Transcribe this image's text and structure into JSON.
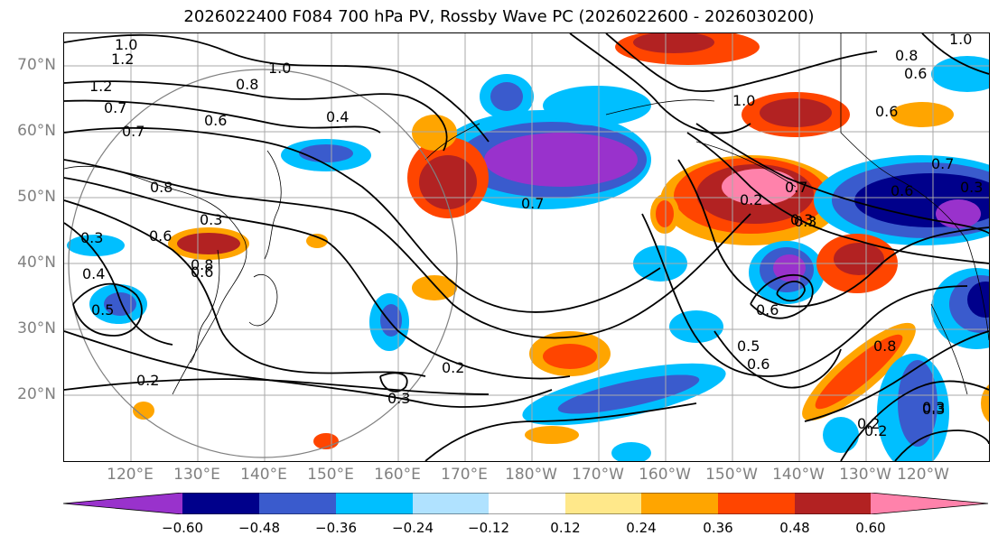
{
  "title": "2026022400 F084 700 hPa PV, Rossby Wave PC (2026022600 - 2026030200)",
  "latitude_labels": [
    "70°N",
    "60°N",
    "50°N",
    "40°N",
    "30°N",
    "20°N"
  ],
  "longitude_labels": [
    "120°E",
    "130°E",
    "140°E",
    "150°E",
    "160°E",
    "170°E",
    "180°W",
    "170°W",
    "160°W",
    "150°W",
    "140°W",
    "130°W",
    "120°W"
  ],
  "colorbar": {
    "tick_labels": [
      "−0.60",
      "−0.48",
      "−0.36",
      "−0.24",
      "−0.12",
      "0.12",
      "0.24",
      "0.36",
      "0.48",
      "0.60"
    ],
    "colors": [
      "#9932cc",
      "#00008b",
      "#3a5bcd",
      "#00bfff",
      "#b0e2ff",
      "#ffffff",
      "#ffe88a",
      "#ffa500",
      "#ff4500",
      "#b22222",
      "#ff82ab"
    ]
  },
  "contour_labels": [
    "1.0",
    "1.2",
    "1.2",
    "0.8",
    "0.7",
    "0.7",
    "0.6",
    "0.8",
    "1.0",
    "0.4",
    "0.4",
    "0.6",
    "0.8",
    "0.3",
    "0.6",
    "0.5",
    "0.3",
    "0.2",
    "0.2",
    "0.3",
    "0.7",
    "1.0",
    "0.2",
    "0.7",
    "0.3",
    "0.6",
    "0.5",
    "0.6",
    "0.3",
    "0.8",
    "0.6",
    "0.3",
    "0.2",
    "0.2",
    "0.3",
    "0.8",
    "0.6",
    "1.0",
    "0.6",
    "0.7",
    "0.3"
  ]
}
